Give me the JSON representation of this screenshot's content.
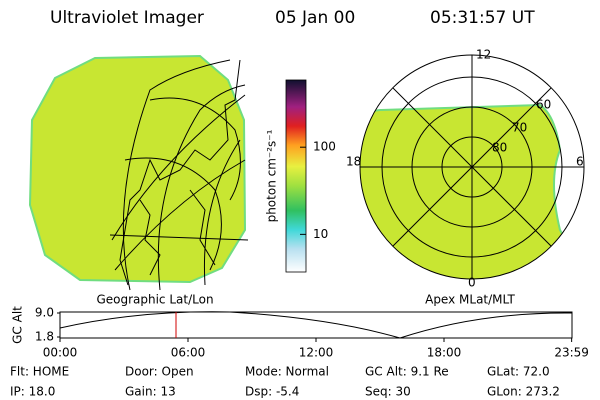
{
  "header": {
    "title": "Ultraviolet Imager",
    "date": "05 Jan 00",
    "time": "05:31:57 UT"
  },
  "colorbar": {
    "label": "photon cm⁻²s⁻¹",
    "log": true,
    "range": [
      3.7,
      590
    ],
    "ticks": [
      10,
      100
    ]
  },
  "left_panel": {
    "label": "Geographic Lat/Lon"
  },
  "right_panel": {
    "label": "Apex MLat/MLT",
    "mlt_labels": [
      "12",
      "18",
      "6",
      "0"
    ],
    "lat_labels": [
      "60",
      "70",
      "80"
    ]
  },
  "altitude_plot": {
    "ylabel": "GC Alt",
    "ylim": [
      1.8,
      9.0
    ],
    "yticks": [
      {
        "value": 9.0,
        "label": "9.0"
      },
      {
        "value": 1.8,
        "label": "1.8"
      }
    ],
    "xlim": [
      0,
      24
    ],
    "xticks": [
      {
        "value": 0,
        "label": "00:00"
      },
      {
        "value": 6,
        "label": "06:00"
      },
      {
        "value": 12,
        "label": "12:00"
      },
      {
        "value": 18,
        "label": "18:00"
      },
      {
        "value": 23.983,
        "label": "23:59"
      }
    ]
  },
  "status": {
    "rows": [
      [
        "Flt: HOME",
        "Door: Open",
        "Mode: Normal",
        "GC Alt: 9.1 Re",
        "GLat: 72.0"
      ],
      [
        "IP: 18.0",
        "Gain: 13",
        "Dsp: -5.4",
        "Seq: 30",
        "GLon: 273.2"
      ]
    ]
  }
}
